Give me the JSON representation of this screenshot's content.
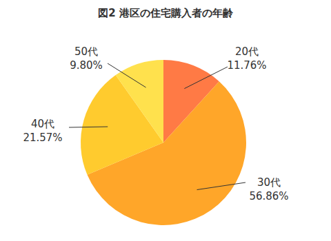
{
  "chart_data": {
    "type": "pie",
    "title": "図2 港区の住宅購入者の年齢",
    "categories": [
      "20代",
      "30代",
      "40代",
      "50代"
    ],
    "values": [
      11.76,
      56.86,
      21.57,
      9.8
    ],
    "value_labels": [
      "11.76%",
      "56.86%",
      "21.57%",
      "9.80%"
    ],
    "colors": [
      "#ff7a45",
      "#ffa629",
      "#ffcb2e",
      "#ffe14d"
    ],
    "data_labels": true
  }
}
